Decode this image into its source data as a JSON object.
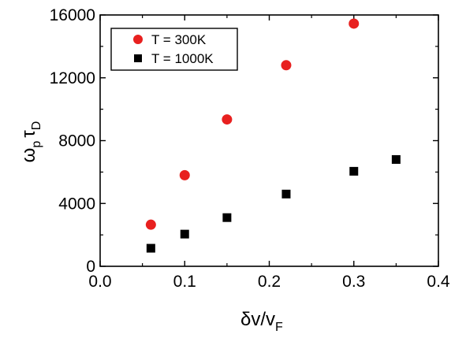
{
  "chart_data": {
    "type": "scatter",
    "xlabel": {
      "main": "δv/v",
      "sub": "F"
    },
    "ylabel": {
      "main1": "ω",
      "sub1": "p",
      "main2": "τ",
      "sub2": "D"
    },
    "xlim": [
      0.0,
      0.4
    ],
    "ylim": [
      0,
      16000
    ],
    "xticks": [
      0.0,
      0.1,
      0.2,
      0.3,
      0.4
    ],
    "xtick_labels": [
      "0.0",
      "0.1",
      "0.2",
      "0.3",
      "0.4"
    ],
    "yticks": [
      0,
      4000,
      8000,
      12000,
      16000
    ],
    "ytick_labels": [
      "0",
      "4000",
      "8000",
      "12000",
      "16000"
    ],
    "grid": false,
    "legend_position": "top-left",
    "series": [
      {
        "name": "T = 300K",
        "marker": "circle",
        "color": "#e8201f",
        "x": [
          0.06,
          0.1,
          0.15,
          0.22,
          0.3
        ],
        "y": [
          2650,
          5800,
          9350,
          12800,
          15450
        ]
      },
      {
        "name": "T = 1000K",
        "marker": "square",
        "color": "#000000",
        "x": [
          0.06,
          0.1,
          0.15,
          0.22,
          0.3,
          0.35
        ],
        "y": [
          1150,
          2050,
          3100,
          4600,
          6050,
          6800
        ]
      }
    ]
  }
}
